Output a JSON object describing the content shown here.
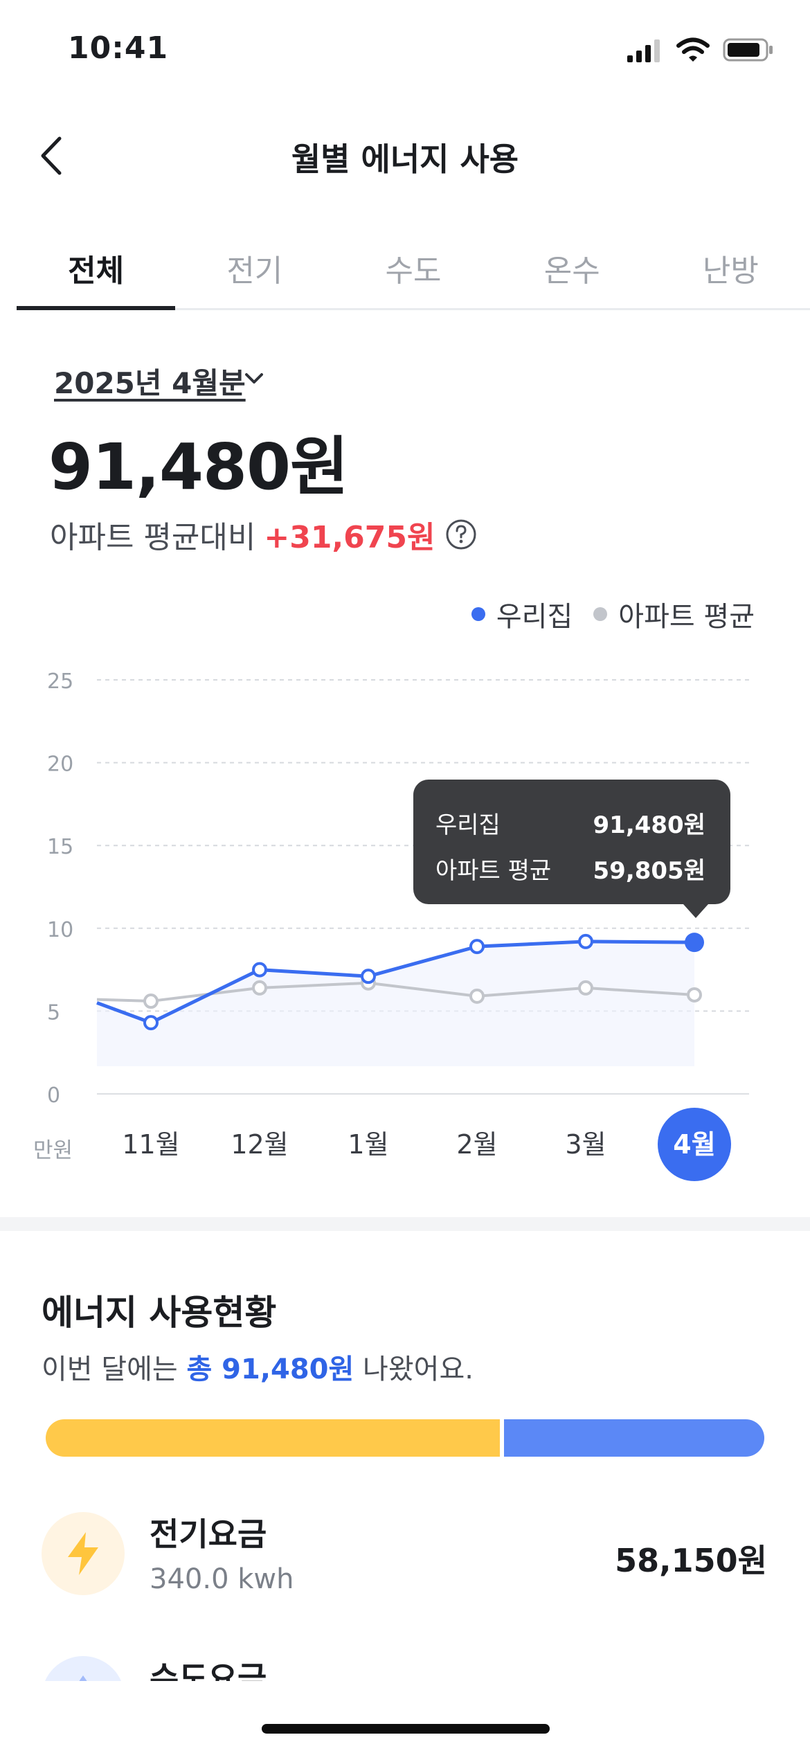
{
  "status_bar": {
    "time": "10:41"
  },
  "nav": {
    "title": "월별 에너지 사용"
  },
  "tabs": [
    {
      "label": "전체",
      "active": true
    },
    {
      "label": "전기",
      "active": false
    },
    {
      "label": "수도",
      "active": false
    },
    {
      "label": "온수",
      "active": false
    },
    {
      "label": "난방",
      "active": false
    }
  ],
  "summary": {
    "period": "2025년 4월분",
    "total": "91,480원",
    "compare_label": "아파트 평균대비",
    "compare_diff": "+31,675원"
  },
  "legend": {
    "ours": "우리집",
    "avg": "아파트 평균"
  },
  "tooltip": {
    "ours_label": "우리집",
    "ours_value": "91,480원",
    "avg_label": "아파트 평균",
    "avg_value": "59,805원"
  },
  "chart_data": {
    "type": "line",
    "categories": [
      "11월",
      "12월",
      "1월",
      "2월",
      "3월",
      "4월"
    ],
    "selected_category": "4월",
    "ylabel": "만원",
    "ylim": [
      0,
      25
    ],
    "yticks": [
      0,
      5,
      10,
      15,
      20,
      25
    ],
    "grid": true,
    "legend_position": "top-right",
    "series": [
      {
        "name": "우리집",
        "color": "#3a6df0",
        "values": [
          4.3,
          7.5,
          7.1,
          8.9,
          9.2,
          9.148
        ],
        "lead_in": 5.5
      },
      {
        "name": "아파트 평균",
        "color": "#c2c5cb",
        "values": [
          5.6,
          6.4,
          6.7,
          5.9,
          6.4,
          5.98
        ],
        "lead_in": 5.7
      }
    ]
  },
  "energy": {
    "title": "에너지 사용현황",
    "subtitle_prefix": "이번 달에는 ",
    "subtitle_total": "총 91,480원",
    "subtitle_suffix": " 나왔어요.",
    "bar_shares": [
      0.636,
      0.364
    ],
    "bar_colors": [
      "#ffc94a",
      "#5b88f6"
    ],
    "rows": [
      {
        "name": "전기요금",
        "usage": "340.0 kwh",
        "amount": "58,150원",
        "icon": "lightning-icon"
      },
      {
        "name": "수도요금",
        "icon": "water-drop-icon"
      }
    ]
  }
}
